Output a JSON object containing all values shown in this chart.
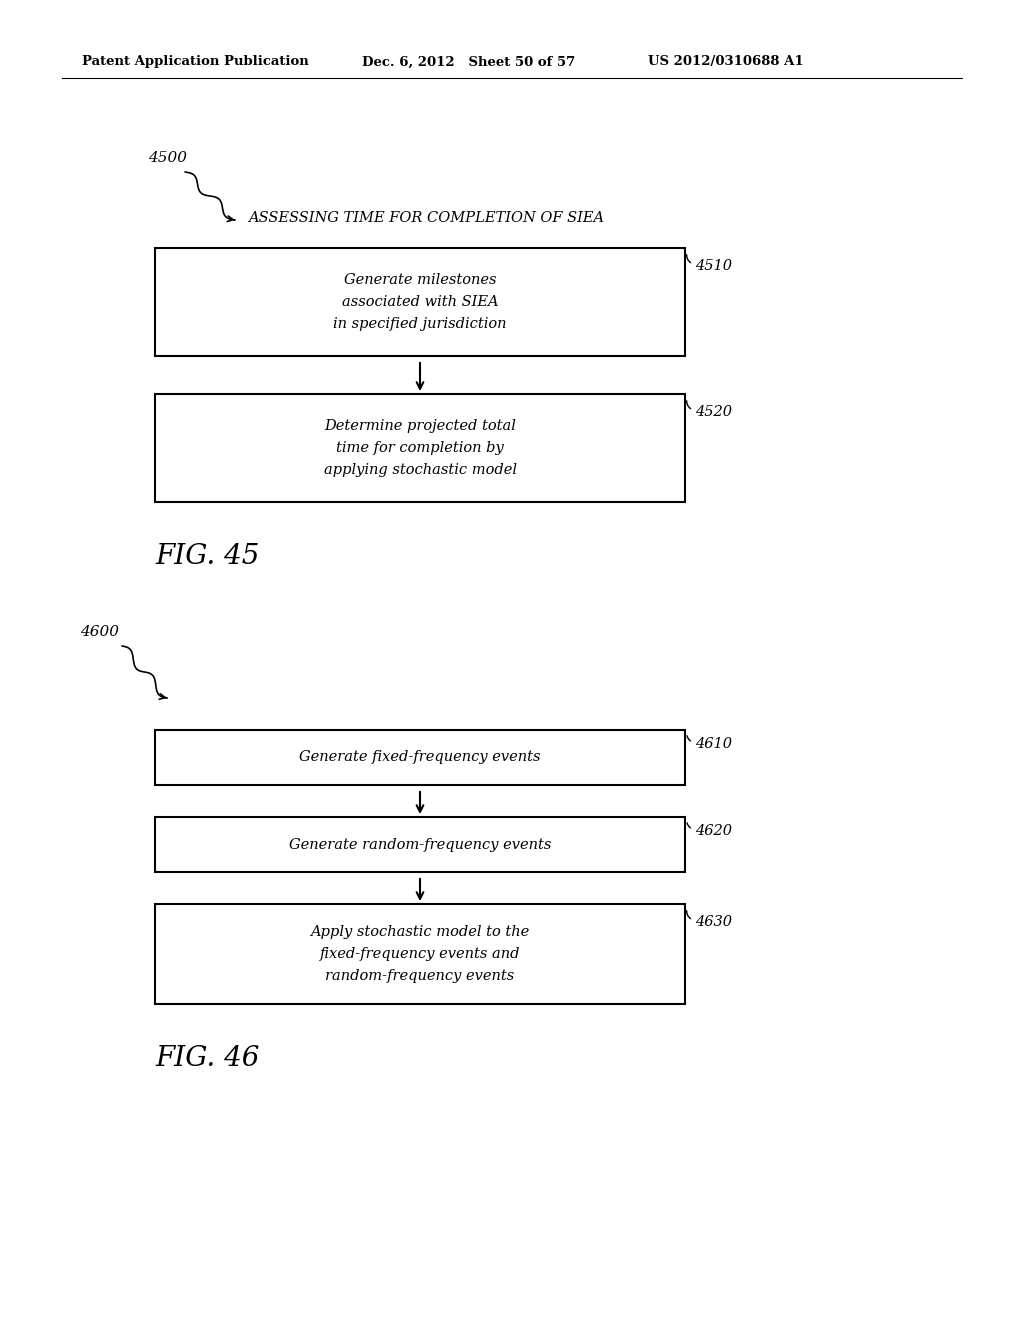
{
  "bg_color": "#ffffff",
  "header_left": "Patent Application Publication",
  "header_mid": "Dec. 6, 2012   Sheet 50 of 57",
  "header_right": "US 2012/0310688 A1",
  "fig45_label": "4500",
  "fig45_title": "ASSESSING TIME FOR COMPLETION OF SIEA",
  "fig45_caption": "FIG. 45",
  "box4510_label": "4510",
  "box4510_text": "Generate milestones\nassociated with SIEA\nin specified jurisdiction",
  "box4520_label": "4520",
  "box4520_text": "Determine projected total\ntime for completion by\napplying stochastic model",
  "fig46_label": "4600",
  "fig46_caption": "FIG. 46",
  "box4610_label": "4610",
  "box4610_text": "Generate fixed-frequency events",
  "box4620_label": "4620",
  "box4620_text": "Generate random-frequency events",
  "box4630_label": "4630",
  "box4630_text": "Apply stochastic model to the\nfixed-frequency events and\nrandom-frequency events",
  "box_facecolor": "#ffffff",
  "box_edgecolor": "#000000",
  "text_color": "#000000",
  "line_color": "#000000"
}
